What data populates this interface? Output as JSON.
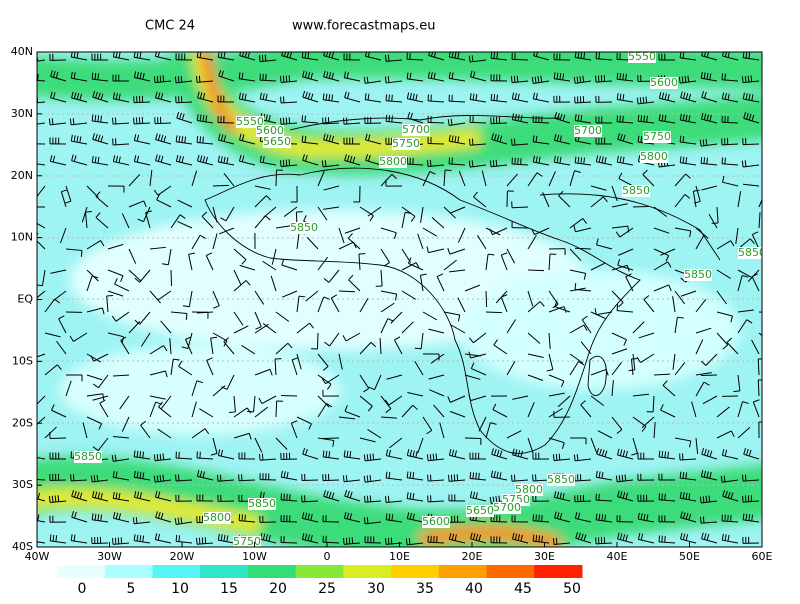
{
  "header": {
    "title": "CMC 24",
    "source": "www.forecastmaps.eu"
  },
  "map": {
    "lat_labels": [
      "40N",
      "30N",
      "20N",
      "10N",
      "EQ",
      "10S",
      "20S",
      "30S",
      "40S"
    ],
    "lon_labels": [
      "40W",
      "30W",
      "20W",
      "10W",
      "0",
      "10E",
      "20E",
      "30E",
      "40E",
      "50E",
      "60E"
    ],
    "contour_labels": [
      5550,
      5600,
      5550,
      5600,
      5650,
      5700,
      5750,
      5800,
      5700,
      5750,
      5800,
      5850,
      5850,
      5850,
      5850,
      5850,
      5850,
      5800,
      5750,
      5700,
      5650,
      5600,
      5850,
      5800,
      5750
    ]
  },
  "colorbar": {
    "ticks": [
      0,
      5,
      10,
      15,
      20,
      25,
      30,
      35,
      40,
      45,
      50
    ],
    "colors": [
      "#e8ffff",
      "#aaffff",
      "#55f5f5",
      "#2ee6c8",
      "#33dd77",
      "#88e83a",
      "#d8ee22",
      "#ffd000",
      "#ffa000",
      "#ff6a00",
      "#ff2200"
    ]
  }
}
